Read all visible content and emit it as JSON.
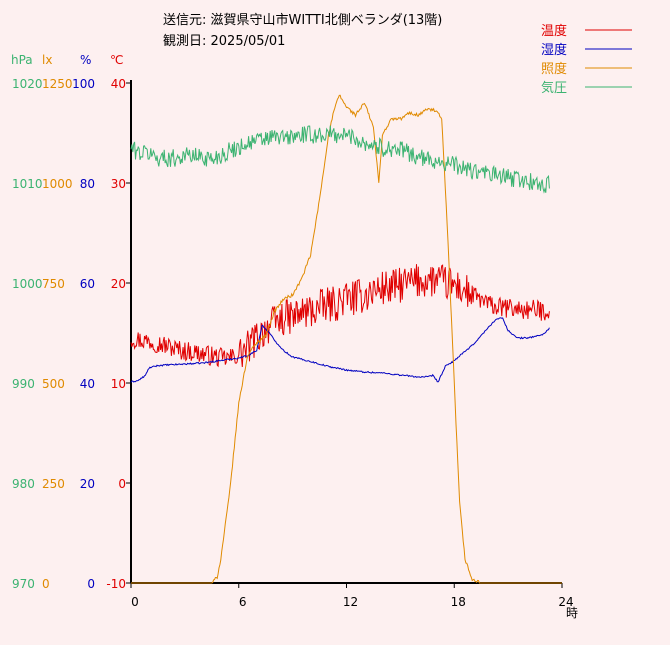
{
  "header": {
    "line1": "送信元: 滋賀県守山市WITTI北側ベランダ(13階)",
    "line2": "観測日: 2025/05/01"
  },
  "units": {
    "pressure": "hPa",
    "illuminance": "lx",
    "humidity": "%",
    "temperature": "℃",
    "x": "時"
  },
  "colors": {
    "background": "#fdf0f0",
    "temperature": "#e00000",
    "humidity": "#0000c0",
    "illuminance": "#e08a00",
    "pressure": "#3cb371",
    "axis": "#000000"
  },
  "chart_data": {
    "type": "line",
    "x_unit": "時",
    "xlim": [
      0,
      24
    ],
    "x_ticks": [
      0,
      6,
      12,
      18,
      24
    ],
    "grid": false,
    "legend_position": "top-right",
    "axes": {
      "pressure": {
        "unit": "hPa",
        "ticks": [
          "970",
          "980",
          "990",
          "1000",
          "1010",
          "1020"
        ],
        "range": [
          970,
          1020
        ]
      },
      "illuminance": {
        "unit": "lx",
        "ticks": [
          "0",
          "250",
          "500",
          "750",
          "1000",
          "1250"
        ],
        "range": [
          0,
          1250
        ]
      },
      "humidity": {
        "unit": "%",
        "ticks": [
          "0",
          "20",
          "40",
          "60",
          "80",
          "100"
        ],
        "range": [
          0,
          100
        ]
      },
      "temperature": {
        "unit": "℃",
        "ticks": [
          "-10",
          "0",
          "10",
          "20",
          "30",
          "40"
        ],
        "range": [
          -10,
          40
        ]
      }
    },
    "series": [
      {
        "name": "温度",
        "key": "temperature",
        "x": [
          0,
          0.5,
          1,
          1.5,
          2,
          2.5,
          3,
          3.5,
          4,
          4.5,
          5,
          5.5,
          6,
          6.5,
          7,
          7.5,
          8,
          8.5,
          9,
          9.5,
          10,
          10.5,
          11,
          11.5,
          12,
          12.5,
          13,
          13.5,
          14,
          14.5,
          15,
          15.5,
          16,
          16.5,
          17,
          17.5,
          18,
          18.5,
          19,
          19.5,
          20,
          20.5,
          21,
          21.5,
          22,
          22.5,
          23,
          23.3
        ],
        "values": [
          14.5,
          14.3,
          14.2,
          14,
          13.7,
          13.4,
          13.2,
          13.1,
          12.9,
          12.7,
          12.5,
          12.5,
          12.8,
          13.5,
          14.5,
          15.5,
          16,
          16.5,
          16.6,
          17,
          17.2,
          17.5,
          17.8,
          18,
          18.5,
          18.5,
          18.8,
          19.2,
          19.5,
          19.5,
          19.8,
          20,
          20.2,
          20.3,
          20.3,
          20,
          19.8,
          19.3,
          18.8,
          18.3,
          17.8,
          17.5,
          17.5,
          17.4,
          17.3,
          17.3,
          17.2,
          17.3
        ]
      },
      {
        "name": "湿度",
        "key": "humidity",
        "x": [
          0,
          0.4,
          0.8,
          1,
          1.5,
          2,
          3,
          4,
          5,
          6,
          6.5,
          7,
          7.3,
          7.6,
          8,
          8.5,
          9,
          10,
          11,
          12,
          13,
          14,
          15,
          16,
          16.5,
          16.8,
          17.1,
          17.5,
          18,
          18.5,
          19,
          19.5,
          20,
          20.3,
          20.7,
          21,
          21.5,
          22,
          22.5,
          23,
          23.3
        ],
        "values": [
          40.2,
          40.5,
          41.5,
          43,
          43.5,
          43.6,
          43.8,
          44,
          44.5,
          45,
          45.5,
          46.5,
          51.5,
          50.5,
          48.5,
          46.5,
          45.2,
          44.3,
          43.3,
          42.6,
          42.2,
          42,
          41.6,
          41.2,
          41.2,
          41.5,
          40.2,
          43.3,
          44.5,
          46,
          47.5,
          49.5,
          51.5,
          52.7,
          53,
          50.5,
          49,
          49,
          49.3,
          49.8,
          51
        ]
      },
      {
        "name": "照度",
        "key": "illuminance",
        "x": [
          0,
          4.5,
          4.8,
          5,
          5.5,
          6,
          6.5,
          7,
          7.5,
          8,
          8.5,
          9,
          9.5,
          10,
          10.5,
          11,
          11.3,
          11.6,
          12,
          12.5,
          13,
          13.5,
          13.8,
          14,
          14.5,
          15,
          15.5,
          16,
          16.5,
          17,
          17.3,
          17.6,
          18,
          18.3,
          18.6,
          19,
          19.5,
          24
        ],
        "values": [
          0,
          0,
          15,
          60,
          230,
          450,
          570,
          600,
          620,
          680,
          710,
          720,
          760,
          820,
          960,
          1120,
          1180,
          1220,
          1190,
          1170,
          1200,
          1140,
          1000,
          1120,
          1160,
          1160,
          1175,
          1170,
          1185,
          1180,
          1160,
          900,
          500,
          200,
          60,
          8,
          0,
          0
        ]
      },
      {
        "name": "気圧",
        "key": "pressure",
        "x": [
          0,
          0.5,
          1,
          1.5,
          2,
          2.5,
          3,
          3.5,
          4,
          4.5,
          5,
          5.5,
          6,
          6.5,
          7,
          7.5,
          8,
          8.5,
          9,
          9.5,
          10,
          10.5,
          11,
          11.5,
          12,
          12.5,
          13,
          13.5,
          14,
          14.5,
          15,
          15.5,
          16,
          16.5,
          17,
          17.5,
          18,
          18.5,
          19,
          19.5,
          20,
          20.5,
          21,
          21.5,
          22,
          22.5,
          23,
          23.3
        ],
        "values": [
          1013.5,
          1013,
          1013,
          1012.5,
          1012.5,
          1012.5,
          1012.8,
          1012.7,
          1012.6,
          1012.4,
          1012.8,
          1013.2,
          1013.6,
          1014,
          1014.2,
          1014.4,
          1014.6,
          1014.5,
          1014.6,
          1014.8,
          1014.8,
          1014.8,
          1014.9,
          1014.8,
          1014.8,
          1014.5,
          1014,
          1013.8,
          1013.5,
          1013.5,
          1013.3,
          1013,
          1012.6,
          1012.3,
          1012.3,
          1012,
          1011.8,
          1011.5,
          1011.2,
          1011,
          1010.9,
          1010.7,
          1010.5,
          1010.4,
          1010.2,
          1010,
          1009.7,
          1009.8
        ]
      }
    ]
  }
}
